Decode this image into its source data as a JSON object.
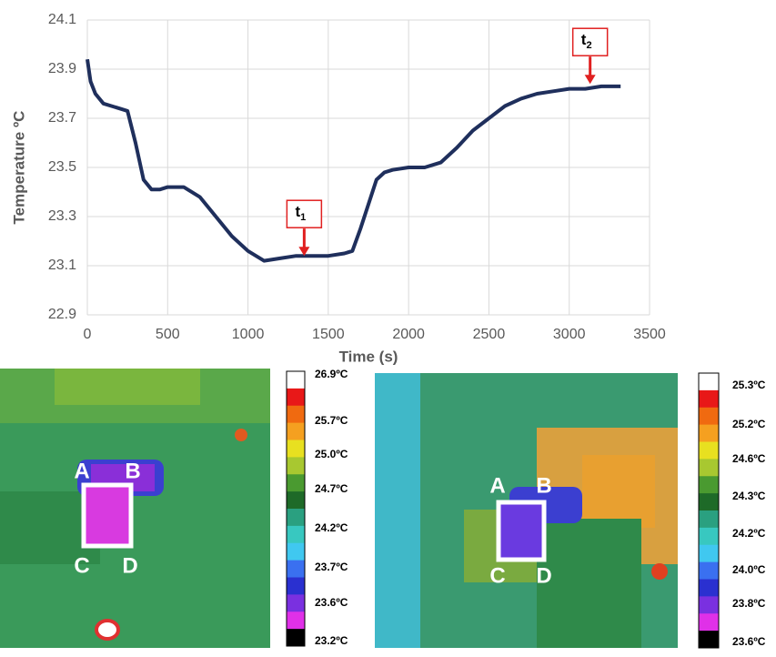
{
  "chart_data": {
    "type": "line",
    "y_label": "Temperature ºC",
    "x_label": "Time (s)",
    "xlim": [
      0,
      3500
    ],
    "xticks": [
      0,
      500,
      1000,
      1500,
      2000,
      2500,
      3000,
      3500
    ],
    "ylim": [
      22.9,
      24.1
    ],
    "yticks": [
      22.9,
      23.1,
      23.3,
      23.5,
      23.7,
      23.9,
      24.1
    ],
    "grid": true,
    "series": [
      {
        "color": "#1f2f5c",
        "x": [
          0,
          20,
          50,
          100,
          150,
          200,
          250,
          300,
          350,
          400,
          450,
          500,
          600,
          700,
          800,
          900,
          1000,
          1100,
          1200,
          1300,
          1400,
          1500,
          1600,
          1650,
          1700,
          1750,
          1800,
          1850,
          1900,
          2000,
          2100,
          2200,
          2300,
          2400,
          2500,
          2600,
          2700,
          2800,
          2900,
          3000,
          3100,
          3200,
          3320
        ],
        "values": [
          23.94,
          23.85,
          23.8,
          23.76,
          23.75,
          23.74,
          23.73,
          23.6,
          23.45,
          23.41,
          23.41,
          23.42,
          23.42,
          23.38,
          23.3,
          23.22,
          23.16,
          23.12,
          23.13,
          23.14,
          23.14,
          23.14,
          23.15,
          23.16,
          23.25,
          23.35,
          23.45,
          23.48,
          23.49,
          23.5,
          23.5,
          23.52,
          23.58,
          23.65,
          23.7,
          23.75,
          23.78,
          23.8,
          23.81,
          23.82,
          23.82,
          23.83,
          23.83
        ]
      }
    ],
    "annotations": [
      {
        "label": "t",
        "sub": "1",
        "x": 1350,
        "y": 23.14
      },
      {
        "label": "t",
        "sub": "2",
        "x": 3130,
        "y": 23.84
      }
    ]
  },
  "thermal_images": [
    {
      "points": [
        "A",
        "B",
        "C",
        "D"
      ],
      "scale": [
        "26.9ºC",
        "25.7ºC",
        "25.0ºC",
        "24.7ºC",
        "24.2ºC",
        "23.7ºC",
        "23.6ºC",
        "23.2ºC"
      ]
    },
    {
      "points": [
        "A",
        "B",
        "C",
        "D"
      ],
      "scale": [
        "25.3ºC",
        "25.2ºC",
        "24.6ºC",
        "24.3ºC",
        "24.2ºC",
        "24.0ºC",
        "23.8ºC",
        "23.6ºC"
      ]
    }
  ]
}
